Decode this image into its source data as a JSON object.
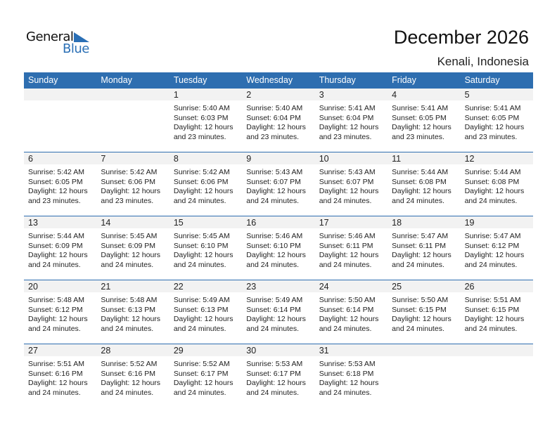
{
  "logo": {
    "text_general": "General",
    "text_blue": "Blue",
    "accent": "#2a6fb5"
  },
  "header": {
    "title": "December 2026",
    "location": "Kenali, Indonesia"
  },
  "colors": {
    "header_bg": "#2e6eb0",
    "band_bg": "#f2f2f2"
  },
  "weekdays": [
    "Sunday",
    "Monday",
    "Tuesday",
    "Wednesday",
    "Thursday",
    "Friday",
    "Saturday"
  ],
  "weeks": [
    [
      null,
      null,
      {
        "day": "1",
        "sunrise": "Sunrise: 5:40 AM",
        "sunset": "Sunset: 6:03 PM",
        "daylight": "Daylight: 12 hours\nand 23 minutes."
      },
      {
        "day": "2",
        "sunrise": "Sunrise: 5:40 AM",
        "sunset": "Sunset: 6:04 PM",
        "daylight": "Daylight: 12 hours\nand 23 minutes."
      },
      {
        "day": "3",
        "sunrise": "Sunrise: 5:41 AM",
        "sunset": "Sunset: 6:04 PM",
        "daylight": "Daylight: 12 hours\nand 23 minutes."
      },
      {
        "day": "4",
        "sunrise": "Sunrise: 5:41 AM",
        "sunset": "Sunset: 6:05 PM",
        "daylight": "Daylight: 12 hours\nand 23 minutes."
      },
      {
        "day": "5",
        "sunrise": "Sunrise: 5:41 AM",
        "sunset": "Sunset: 6:05 PM",
        "daylight": "Daylight: 12 hours\nand 23 minutes."
      }
    ],
    [
      {
        "day": "6",
        "sunrise": "Sunrise: 5:42 AM",
        "sunset": "Sunset: 6:05 PM",
        "daylight": "Daylight: 12 hours\nand 23 minutes."
      },
      {
        "day": "7",
        "sunrise": "Sunrise: 5:42 AM",
        "sunset": "Sunset: 6:06 PM",
        "daylight": "Daylight: 12 hours\nand 23 minutes."
      },
      {
        "day": "8",
        "sunrise": "Sunrise: 5:42 AM",
        "sunset": "Sunset: 6:06 PM",
        "daylight": "Daylight: 12 hours\nand 24 minutes."
      },
      {
        "day": "9",
        "sunrise": "Sunrise: 5:43 AM",
        "sunset": "Sunset: 6:07 PM",
        "daylight": "Daylight: 12 hours\nand 24 minutes."
      },
      {
        "day": "10",
        "sunrise": "Sunrise: 5:43 AM",
        "sunset": "Sunset: 6:07 PM",
        "daylight": "Daylight: 12 hours\nand 24 minutes."
      },
      {
        "day": "11",
        "sunrise": "Sunrise: 5:44 AM",
        "sunset": "Sunset: 6:08 PM",
        "daylight": "Daylight: 12 hours\nand 24 minutes."
      },
      {
        "day": "12",
        "sunrise": "Sunrise: 5:44 AM",
        "sunset": "Sunset: 6:08 PM",
        "daylight": "Daylight: 12 hours\nand 24 minutes."
      }
    ],
    [
      {
        "day": "13",
        "sunrise": "Sunrise: 5:44 AM",
        "sunset": "Sunset: 6:09 PM",
        "daylight": "Daylight: 12 hours\nand 24 minutes."
      },
      {
        "day": "14",
        "sunrise": "Sunrise: 5:45 AM",
        "sunset": "Sunset: 6:09 PM",
        "daylight": "Daylight: 12 hours\nand 24 minutes."
      },
      {
        "day": "15",
        "sunrise": "Sunrise: 5:45 AM",
        "sunset": "Sunset: 6:10 PM",
        "daylight": "Daylight: 12 hours\nand 24 minutes."
      },
      {
        "day": "16",
        "sunrise": "Sunrise: 5:46 AM",
        "sunset": "Sunset: 6:10 PM",
        "daylight": "Daylight: 12 hours\nand 24 minutes."
      },
      {
        "day": "17",
        "sunrise": "Sunrise: 5:46 AM",
        "sunset": "Sunset: 6:11 PM",
        "daylight": "Daylight: 12 hours\nand 24 minutes."
      },
      {
        "day": "18",
        "sunrise": "Sunrise: 5:47 AM",
        "sunset": "Sunset: 6:11 PM",
        "daylight": "Daylight: 12 hours\nand 24 minutes."
      },
      {
        "day": "19",
        "sunrise": "Sunrise: 5:47 AM",
        "sunset": "Sunset: 6:12 PM",
        "daylight": "Daylight: 12 hours\nand 24 minutes."
      }
    ],
    [
      {
        "day": "20",
        "sunrise": "Sunrise: 5:48 AM",
        "sunset": "Sunset: 6:12 PM",
        "daylight": "Daylight: 12 hours\nand 24 minutes."
      },
      {
        "day": "21",
        "sunrise": "Sunrise: 5:48 AM",
        "sunset": "Sunset: 6:13 PM",
        "daylight": "Daylight: 12 hours\nand 24 minutes."
      },
      {
        "day": "22",
        "sunrise": "Sunrise: 5:49 AM",
        "sunset": "Sunset: 6:13 PM",
        "daylight": "Daylight: 12 hours\nand 24 minutes."
      },
      {
        "day": "23",
        "sunrise": "Sunrise: 5:49 AM",
        "sunset": "Sunset: 6:14 PM",
        "daylight": "Daylight: 12 hours\nand 24 minutes."
      },
      {
        "day": "24",
        "sunrise": "Sunrise: 5:50 AM",
        "sunset": "Sunset: 6:14 PM",
        "daylight": "Daylight: 12 hours\nand 24 minutes."
      },
      {
        "day": "25",
        "sunrise": "Sunrise: 5:50 AM",
        "sunset": "Sunset: 6:15 PM",
        "daylight": "Daylight: 12 hours\nand 24 minutes."
      },
      {
        "day": "26",
        "sunrise": "Sunrise: 5:51 AM",
        "sunset": "Sunset: 6:15 PM",
        "daylight": "Daylight: 12 hours\nand 24 minutes."
      }
    ],
    [
      {
        "day": "27",
        "sunrise": "Sunrise: 5:51 AM",
        "sunset": "Sunset: 6:16 PM",
        "daylight": "Daylight: 12 hours\nand 24 minutes."
      },
      {
        "day": "28",
        "sunrise": "Sunrise: 5:52 AM",
        "sunset": "Sunset: 6:16 PM",
        "daylight": "Daylight: 12 hours\nand 24 minutes."
      },
      {
        "day": "29",
        "sunrise": "Sunrise: 5:52 AM",
        "sunset": "Sunset: 6:17 PM",
        "daylight": "Daylight: 12 hours\nand 24 minutes."
      },
      {
        "day": "30",
        "sunrise": "Sunrise: 5:53 AM",
        "sunset": "Sunset: 6:17 PM",
        "daylight": "Daylight: 12 hours\nand 24 minutes."
      },
      {
        "day": "31",
        "sunrise": "Sunrise: 5:53 AM",
        "sunset": "Sunset: 6:18 PM",
        "daylight": "Daylight: 12 hours\nand 24 minutes."
      },
      null,
      null
    ]
  ]
}
